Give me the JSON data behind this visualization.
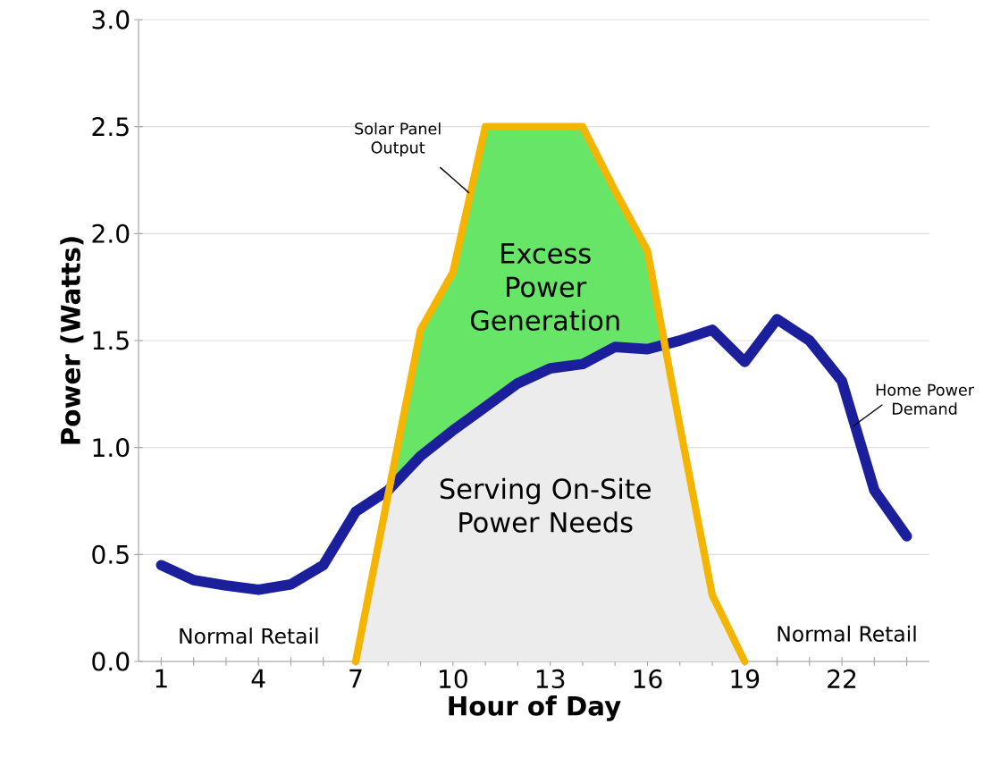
{
  "chart_data": {
    "type": "line",
    "xlabel": "Hour of Day",
    "ylabel": "Power (Watts)",
    "x": [
      1,
      2,
      3,
      4,
      5,
      6,
      7,
      8,
      9,
      10,
      11,
      12,
      13,
      14,
      15,
      16,
      17,
      18,
      19,
      20,
      21,
      22,
      23,
      24
    ],
    "series": [
      {
        "color": "#1b1f9c",
        "values": [
          0.45,
          0.38,
          0.355,
          0.335,
          0.36,
          0.45,
          0.7,
          0.8,
          0.96,
          1.08,
          1.19,
          1.3,
          1.37,
          1.39,
          1.47,
          1.46,
          1.5,
          1.55,
          1.4,
          1.6,
          1.5,
          1.31,
          0.8,
          0.585
        ]
      },
      {
        "color": "#f5b400",
        "values": [
          null,
          null,
          null,
          null,
          null,
          null,
          0,
          0.78,
          1.55,
          1.82,
          2.5,
          2.5,
          2.5,
          2.5,
          2.2,
          1.92,
          1.1,
          0.31,
          0,
          null,
          null,
          null,
          null,
          null
        ]
      }
    ],
    "xlim": [
      0.3,
      24.7
    ],
    "ylim": [
      0,
      3
    ],
    "xticks": [
      1,
      {
        "value": 2,
        "label": null
      },
      {
        "value": 3,
        "label": null
      },
      4,
      {
        "value": 5,
        "label": null
      },
      {
        "value": 6,
        "label": null
      },
      7,
      {
        "value": 8,
        "label": null
      },
      {
        "value": 9,
        "label": null
      },
      10,
      {
        "value": 11,
        "label": null
      },
      {
        "value": 12,
        "label": null
      },
      13,
      {
        "value": 14,
        "label": null
      },
      {
        "value": 15,
        "label": null
      },
      16,
      {
        "value": 17,
        "label": null
      },
      {
        "value": 18,
        "label": null
      },
      19,
      {
        "value": 20,
        "label": null
      },
      {
        "value": 21,
        "label": null
      },
      22,
      {
        "value": 23,
        "label": null
      },
      {
        "value": 24,
        "label": null
      }
    ],
    "yticks": [
      {
        "value": 0,
        "label": "0.0"
      },
      {
        "value": 0.5,
        "label": "0.5"
      },
      {
        "value": 1,
        "label": "1.0"
      },
      {
        "value": 1.5,
        "label": "1.5"
      },
      {
        "value": 2,
        "label": "2.0"
      },
      {
        "value": 2.5,
        "label": "2.5"
      },
      {
        "value": 3,
        "label": "3.0"
      }
    ],
    "grid": "y",
    "marker": "none",
    "line_style": "solid",
    "annotations": [
      "Excess Power Generation",
      "Serving On-Site Power Needs",
      "Normal Retail",
      "Normal Retail",
      {
        "text": "Solar Panel Output",
        "x": 10.5,
        "y": 2.19
      },
      {
        "text": "Home Power Demand",
        "x": 22.35,
        "y": 1.1
      }
    ]
  }
}
